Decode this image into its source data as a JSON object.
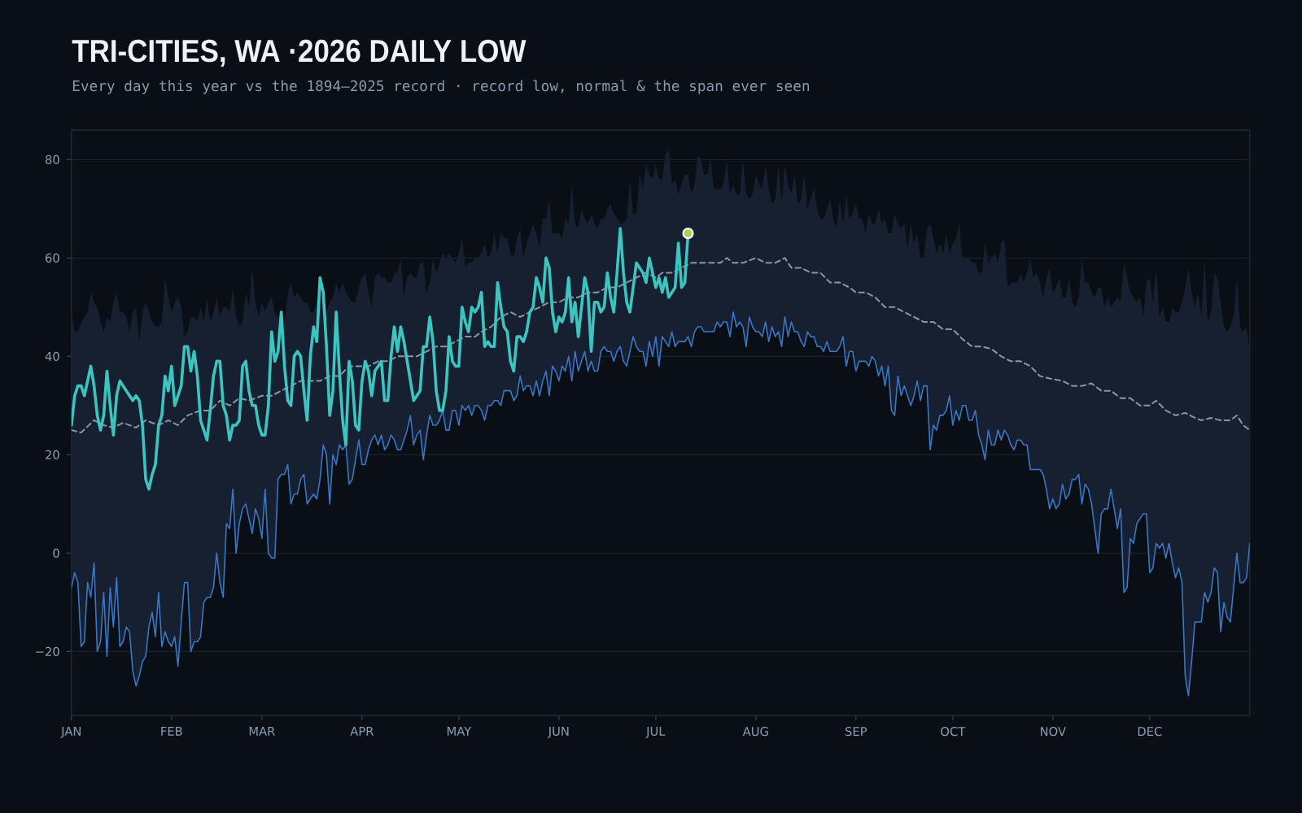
{
  "chart_data": {
    "type": "line",
    "title": "TRI-CITIES, WA ·2026 DAILY LOW",
    "subtitle": "Every day this year vs the 1894–2025 record · record low, normal & the span ever seen",
    "x": [
      "2026-01-01",
      "2026-01-02",
      "2026-01-03",
      "2026-01-04",
      "2026-01-05",
      "2026-01-06",
      "2026-01-07",
      "2026-01-08",
      "2026-01-09",
      "2026-01-10",
      "2026-01-11",
      "2026-01-12",
      "2026-01-13",
      "2026-01-14",
      "2026-01-15",
      "2026-01-16",
      "2026-01-17",
      "2026-01-18",
      "2026-01-19",
      "2026-01-20",
      "2026-01-21",
      "2026-01-22",
      "2026-01-23",
      "2026-01-24",
      "2026-01-25",
      "2026-01-26",
      "2026-01-27",
      "2026-01-28",
      "2026-01-29",
      "2026-01-30",
      "2026-01-31",
      "2026-02-01",
      "2026-02-02",
      "2026-02-03",
      "2026-02-04",
      "2026-02-05",
      "2026-02-06",
      "2026-02-07",
      "2026-02-08",
      "2026-02-09",
      "2026-02-10",
      "2026-02-11",
      "2026-02-12",
      "2026-02-13",
      "2026-02-14",
      "2026-02-15",
      "2026-02-16",
      "2026-02-17",
      "2026-02-18",
      "2026-02-19",
      "2026-02-20",
      "2026-02-21",
      "2026-02-22",
      "2026-02-23",
      "2026-02-24",
      "2026-02-25",
      "2026-02-26",
      "2026-02-27",
      "2026-02-28",
      "2026-03-01",
      "2026-03-02",
      "2026-03-03",
      "2026-03-04",
      "2026-03-05",
      "2026-03-06",
      "2026-03-07",
      "2026-03-08",
      "2026-03-09",
      "2026-03-10",
      "2026-03-11",
      "2026-03-12",
      "2026-03-13",
      "2026-03-14",
      "2026-03-15",
      "2026-03-16",
      "2026-03-17",
      "2026-03-18",
      "2026-03-19",
      "2026-03-20",
      "2026-03-21",
      "2026-03-22",
      "2026-03-23",
      "2026-03-24",
      "2026-03-25",
      "2026-03-26",
      "2026-03-27",
      "2026-03-28",
      "2026-03-29",
      "2026-03-30",
      "2026-03-31",
      "2026-04-01",
      "2026-04-02",
      "2026-04-03",
      "2026-04-04",
      "2026-04-05",
      "2026-04-06",
      "2026-04-07",
      "2026-04-08",
      "2026-04-09",
      "2026-04-10",
      "2026-04-11",
      "2026-04-12",
      "2026-04-13",
      "2026-04-14",
      "2026-04-15",
      "2026-04-16",
      "2026-04-17",
      "2026-04-18",
      "2026-04-19",
      "2026-04-20",
      "2026-04-21",
      "2026-04-22",
      "2026-04-23",
      "2026-04-24",
      "2026-04-25",
      "2026-04-26",
      "2026-04-27",
      "2026-04-28",
      "2026-04-29",
      "2026-04-30",
      "2026-05-01",
      "2026-05-02",
      "2026-05-03",
      "2026-05-04",
      "2026-05-05",
      "2026-05-06",
      "2026-05-07",
      "2026-05-08",
      "2026-05-09",
      "2026-05-10",
      "2026-05-11",
      "2026-05-12",
      "2026-05-13",
      "2026-05-14",
      "2026-05-15",
      "2026-05-16",
      "2026-05-17",
      "2026-05-18",
      "2026-05-19",
      "2026-05-20",
      "2026-05-21",
      "2026-05-22",
      "2026-05-23",
      "2026-05-24",
      "2026-05-25",
      "2026-05-26",
      "2026-05-27",
      "2026-05-28",
      "2026-05-29",
      "2026-05-30",
      "2026-05-31",
      "2026-06-01",
      "2026-06-02",
      "2026-06-03",
      "2026-06-04",
      "2026-06-05",
      "2026-06-06",
      "2026-06-07",
      "2026-06-08",
      "2026-06-09",
      "2026-06-10",
      "2026-06-11",
      "2026-06-12",
      "2026-06-13",
      "2026-06-14",
      "2026-06-15",
      "2026-06-16",
      "2026-06-17",
      "2026-06-18",
      "2026-06-19",
      "2026-06-20",
      "2026-06-21",
      "2026-06-22",
      "2026-06-23",
      "2026-06-24",
      "2026-06-25",
      "2026-06-26",
      "2026-06-27",
      "2026-06-28",
      "2026-06-29",
      "2026-06-30",
      "2026-07-01",
      "2026-07-02",
      "2026-07-03",
      "2026-07-04",
      "2026-07-05",
      "2026-07-06",
      "2026-07-07",
      "2026-07-08",
      "2026-07-09",
      "2026-07-10",
      "2026-07-11",
      "2026-07-12",
      "2026-07-13",
      "2026-07-14",
      "2026-07-15",
      "2026-07-16",
      "2026-07-17",
      "2026-07-18",
      "2026-07-19",
      "2026-07-20",
      "2026-07-21",
      "2026-07-22",
      "2026-07-23",
      "2026-07-24",
      "2026-07-25",
      "2026-07-26",
      "2026-07-27",
      "2026-07-28",
      "2026-07-29",
      "2026-07-30",
      "2026-07-31",
      "2026-08-01",
      "2026-08-02",
      "2026-08-03",
      "2026-08-04",
      "2026-08-05",
      "2026-08-06",
      "2026-08-07",
      "2026-08-08",
      "2026-08-09",
      "2026-08-10",
      "2026-08-11",
      "2026-08-12",
      "2026-08-13",
      "2026-08-14",
      "2026-08-15",
      "2026-08-16",
      "2026-08-17",
      "2026-08-18",
      "2026-08-19",
      "2026-08-20",
      "2026-08-21",
      "2026-08-22",
      "2026-08-23",
      "2026-08-24",
      "2026-08-25",
      "2026-08-26",
      "2026-08-27",
      "2026-08-28",
      "2026-08-29",
      "2026-08-30",
      "2026-08-31",
      "2026-09-01",
      "2026-09-02",
      "2026-09-03",
      "2026-09-04",
      "2026-09-05",
      "2026-09-06",
      "2026-09-07",
      "2026-09-08",
      "2026-09-09",
      "2026-09-10",
      "2026-09-11",
      "2026-09-12",
      "2026-09-13",
      "2026-09-14",
      "2026-09-15",
      "2026-09-16",
      "2026-09-17",
      "2026-09-18",
      "2026-09-19",
      "2026-09-20",
      "2026-09-21",
      "2026-09-22",
      "2026-09-23",
      "2026-09-24",
      "2026-09-25",
      "2026-09-26",
      "2026-09-27",
      "2026-09-28",
      "2026-09-29",
      "2026-09-30",
      "2026-10-01",
      "2026-10-02",
      "2026-10-03",
      "2026-10-04",
      "2026-10-05",
      "2026-10-06",
      "2026-10-07",
      "2026-10-08",
      "2026-10-09",
      "2026-10-10",
      "2026-10-11",
      "2026-10-12",
      "2026-10-13",
      "2026-10-14",
      "2026-10-15",
      "2026-10-16",
      "2026-10-17",
      "2026-10-18",
      "2026-10-19",
      "2026-10-20",
      "2026-10-21",
      "2026-10-22",
      "2026-10-23",
      "2026-10-24",
      "2026-10-25",
      "2026-10-26",
      "2026-10-27",
      "2026-10-28",
      "2026-10-29",
      "2026-10-30",
      "2026-10-31",
      "2026-11-01",
      "2026-11-02",
      "2026-11-03",
      "2026-11-04",
      "2026-11-05",
      "2026-11-06",
      "2026-11-07",
      "2026-11-08",
      "2026-11-09",
      "2026-11-10",
      "2026-11-11",
      "2026-11-12",
      "2026-11-13",
      "2026-11-14",
      "2026-11-15",
      "2026-11-16",
      "2026-11-17",
      "2026-11-18",
      "2026-11-19",
      "2026-11-20",
      "2026-11-21",
      "2026-11-22",
      "2026-11-23",
      "2026-11-24",
      "2026-11-25",
      "2026-11-26",
      "2026-11-27",
      "2026-11-28",
      "2026-11-29",
      "2026-11-30",
      "2026-12-01",
      "2026-12-02",
      "2026-12-03",
      "2026-12-04",
      "2026-12-05",
      "2026-12-06",
      "2026-12-07",
      "2026-12-08",
      "2026-12-09",
      "2026-12-10",
      "2026-12-11",
      "2026-12-12",
      "2026-12-13",
      "2026-12-14",
      "2026-12-15",
      "2026-12-16",
      "2026-12-17",
      "2026-12-18",
      "2026-12-19",
      "2026-12-20",
      "2026-12-21",
      "2026-12-22",
      "2026-12-23",
      "2026-12-24",
      "2026-12-25",
      "2026-12-26",
      "2026-12-27",
      "2026-12-28",
      "2026-12-29",
      "2026-12-30",
      "2026-12-31",
      "2027-01-01"
    ],
    "series": [
      {
        "color": "#3a76c4",
        "values": [
          -7,
          -4,
          -6,
          -19,
          -18,
          -6,
          -9,
          -2,
          -20,
          -18,
          -8,
          -21,
          -7,
          -15,
          -5,
          -19,
          -18,
          -15,
          -16,
          -24,
          -27,
          -25,
          -22,
          -21,
          -15,
          -12,
          -17,
          -8,
          -19,
          -16,
          -18,
          -19,
          -17,
          -23,
          -14,
          -6,
          -6,
          -20,
          -18,
          -18,
          -17,
          -10,
          -9,
          -9,
          -7,
          0,
          -6,
          -9,
          6,
          5,
          13,
          0,
          6,
          9,
          10,
          7,
          4,
          9,
          7,
          3,
          13,
          0,
          -1,
          -1,
          15,
          16,
          16,
          18,
          10,
          12,
          12,
          15,
          16,
          10,
          11,
          12,
          11,
          15,
          22,
          20,
          10,
          20,
          18,
          22,
          21,
          22,
          14,
          15,
          19,
          23,
          18,
          18,
          21,
          23,
          24,
          22,
          24,
          21,
          22,
          24,
          23,
          21,
          21,
          23,
          25,
          28,
          22,
          24,
          25,
          19,
          24,
          28,
          26,
          26,
          27,
          29,
          25,
          25,
          29,
          29,
          26,
          30,
          29,
          30,
          28,
          30,
          30,
          29,
          27,
          30,
          30,
          31,
          31,
          30,
          33,
          33,
          33,
          31,
          32,
          36,
          33,
          34,
          34,
          32,
          35,
          32,
          35,
          37,
          32,
          38,
          37,
          35,
          38,
          37,
          40,
          35,
          41,
          37,
          39,
          41,
          37,
          39,
          37,
          37,
          41,
          42,
          41,
          41,
          39,
          41,
          42,
          39,
          38,
          41,
          44,
          42,
          41,
          41,
          38,
          43,
          40,
          44,
          38,
          44,
          43,
          42,
          45,
          42,
          43,
          43,
          43,
          44,
          42,
          45,
          46,
          46,
          45,
          45,
          45,
          45,
          47,
          46,
          47,
          47,
          44,
          49,
          46,
          47,
          46,
          42,
          48,
          46,
          45,
          45,
          44,
          47,
          43,
          46,
          44,
          45,
          42,
          48,
          44,
          47,
          45,
          45,
          43,
          42,
          45,
          44,
          44,
          42,
          42,
          41,
          43,
          41,
          41,
          41,
          42,
          44,
          38,
          41,
          41,
          37,
          39,
          39,
          39,
          38,
          40,
          39,
          36,
          38,
          34,
          38,
          29,
          28,
          36,
          32,
          34,
          32,
          30,
          32,
          35,
          31,
          34,
          34,
          21,
          26,
          25,
          28,
          28,
          29,
          32,
          26,
          29,
          27,
          30,
          30,
          27,
          27,
          29,
          24,
          22,
          19,
          25,
          22,
          22,
          25,
          23,
          25,
          24,
          22,
          21,
          23,
          23,
          22,
          22,
          17,
          17,
          17,
          17,
          16,
          13,
          9,
          11,
          9,
          10,
          14,
          11,
          12,
          15,
          15,
          16,
          10,
          14,
          13,
          10,
          5,
          0,
          8,
          9,
          9,
          13,
          9,
          5,
          9,
          -8,
          -7,
          3,
          2,
          6,
          7,
          8,
          8,
          -4,
          -3,
          2,
          1,
          2,
          -1,
          2,
          -2,
          -5,
          -3,
          -6,
          -25,
          -29,
          -22,
          -14,
          -14,
          -14,
          -8,
          -10,
          -8,
          -3,
          -4,
          -16,
          -10,
          -13,
          -14,
          -7,
          0,
          -6,
          -6,
          -5,
          2
        ],
        "lower": [
          -7,
          -4,
          -6,
          -19,
          -18,
          -6,
          -9,
          -2,
          -20,
          -18,
          -8,
          -21,
          -7,
          -15,
          -5,
          -19,
          -18,
          -15,
          -16,
          -24,
          -27,
          -25,
          -22,
          -21,
          -15,
          -12,
          -17,
          -8,
          -19,
          -16,
          -18,
          -19,
          -17,
          -23,
          -14,
          -6,
          -6,
          -20,
          -18,
          -18,
          -17,
          -10,
          -9,
          -9,
          -7,
          0,
          -6,
          -9,
          6,
          5,
          13,
          0,
          6,
          9,
          10,
          7,
          4,
          9,
          7,
          3,
          13,
          0,
          -1,
          -1,
          15,
          16,
          16,
          18,
          10,
          12,
          12,
          15,
          16,
          10,
          11,
          12,
          11,
          15,
          22,
          20,
          10,
          20,
          18,
          22,
          21,
          22,
          14,
          15,
          19,
          23,
          18,
          18,
          21,
          23,
          24,
          22,
          24,
          21,
          22,
          24,
          23,
          21,
          21,
          23,
          25,
          28,
          22,
          24,
          25,
          19,
          24,
          28,
          26,
          26,
          27,
          29,
          25,
          25,
          29,
          29,
          26,
          30,
          29,
          30,
          28,
          30,
          30,
          29,
          27,
          30,
          30,
          31,
          31,
          30,
          33,
          33,
          33,
          31,
          32,
          36,
          33,
          34,
          34,
          32,
          35,
          32,
          35,
          37,
          32,
          38,
          37,
          35,
          38,
          37,
          40,
          35,
          41,
          37,
          39,
          41,
          37,
          39,
          37,
          37,
          41,
          42,
          41,
          41,
          39,
          41,
          42,
          39,
          38,
          41,
          44,
          42,
          41,
          41,
          38,
          43,
          40,
          44,
          38,
          44,
          43,
          42,
          45,
          42,
          43,
          43,
          43,
          44,
          42,
          45,
          46,
          46,
          45,
          45,
          45,
          45,
          47,
          46,
          47,
          47,
          44,
          49,
          46,
          47,
          46,
          42,
          48,
          46,
          45,
          45,
          44,
          47,
          43,
          46,
          44,
          45,
          42,
          48,
          44,
          47,
          45,
          45,
          43,
          42,
          45,
          44,
          44,
          42,
          42,
          41,
          43,
          41,
          41,
          41,
          42,
          44,
          38,
          41,
          41,
          37,
          39,
          39,
          39,
          38,
          40,
          39,
          36,
          38,
          34,
          38,
          29,
          28,
          36,
          32,
          34,
          32,
          30,
          32,
          35,
          31,
          34,
          34,
          21,
          26,
          25,
          28,
          28,
          29,
          32,
          26,
          29,
          27,
          30,
          30,
          27,
          27,
          29,
          24,
          22,
          19,
          25,
          22,
          22,
          25,
          23,
          25,
          24,
          22,
          21,
          23,
          23,
          22,
          22,
          17,
          17,
          17,
          17,
          16,
          13,
          9,
          11,
          9,
          10,
          14,
          11,
          12,
          15,
          15,
          16,
          10,
          14,
          13,
          10,
          5,
          0,
          8,
          9,
          9,
          13,
          9,
          5,
          9,
          -8,
          -7,
          3,
          2,
          6,
          7,
          8,
          8,
          -4,
          -3,
          2,
          1,
          2,
          -1,
          2,
          -2,
          -5,
          -3,
          -6,
          -25,
          -29,
          -22,
          -14,
          -14,
          -14,
          -8,
          -10,
          -8,
          -3,
          -4,
          -16,
          -10,
          -13,
          -14,
          -7,
          0,
          -6,
          -6,
          -5,
          2
        ],
        "upper": [
          49,
          45,
          45,
          47,
          48,
          49,
          53,
          51,
          50,
          47,
          45,
          48,
          47,
          51,
          53,
          49,
          49,
          48,
          45,
          49,
          50,
          43,
          49,
          51,
          49,
          47,
          46,
          46,
          47,
          56,
          52,
          49,
          51,
          52,
          50,
          44,
          45,
          48,
          48,
          47,
          50,
          47,
          52,
          47,
          49,
          52,
          48,
          50,
          50,
          49,
          54,
          48,
          46,
          47,
          53,
          50,
          58,
          51,
          48,
          51,
          49,
          51,
          52,
          49,
          48,
          49,
          47,
          53,
          55,
          52,
          53,
          52,
          51,
          51,
          49,
          49,
          51,
          54,
          53,
          49,
          51,
          52,
          55,
          53,
          55,
          53,
          52,
          51,
          51,
          54,
          56,
          57,
          53,
          50,
          56,
          57,
          56,
          56,
          55,
          55,
          57,
          57,
          60,
          52,
          56,
          57,
          56,
          56,
          59,
          59,
          53,
          55,
          60,
          57,
          59,
          61,
          60,
          61,
          60,
          59,
          61,
          64,
          58,
          59,
          59,
          60,
          60,
          61,
          63,
          60,
          61,
          65,
          61,
          65,
          64,
          64,
          61,
          60,
          64,
          66,
          60,
          63,
          65,
          67,
          65,
          62,
          68,
          68,
          72,
          65,
          65,
          65,
          64,
          68,
          67,
          75,
          67,
          66,
          70,
          68,
          67,
          69,
          67,
          66,
          68,
          68,
          70,
          71,
          69,
          68,
          67,
          67,
          68,
          76,
          69,
          69,
          77,
          74,
          79,
          77,
          76,
          79,
          76,
          76,
          81,
          82,
          75,
          76,
          73,
          75,
          77,
          77,
          73,
          75,
          81,
          80,
          77,
          77,
          80,
          74,
          74,
          74,
          75,
          80,
          73,
          75,
          73,
          73,
          80,
          73,
          72,
          73,
          77,
          75,
          74,
          79,
          74,
          71,
          72,
          79,
          71,
          79,
          75,
          73,
          77,
          71,
          72,
          77,
          70,
          72,
          74,
          70,
          68,
          68,
          70,
          72,
          68,
          66,
          72,
          67,
          73,
          68,
          69,
          71,
          68,
          68,
          65,
          69,
          67,
          67,
          70,
          67,
          68,
          65,
          65,
          69,
          67,
          66,
          67,
          62,
          67,
          63,
          65,
          60,
          60,
          66,
          67,
          64,
          61,
          63,
          61,
          65,
          61,
          63,
          64,
          67,
          60,
          60,
          60,
          59,
          59,
          57,
          57,
          63,
          59,
          60,
          61,
          59,
          63,
          64,
          54,
          55,
          55,
          55,
          57,
          55,
          57,
          60,
          56,
          57,
          55,
          52,
          56,
          58,
          53,
          54,
          56,
          52,
          52,
          56,
          51,
          50,
          52,
          60,
          55,
          55,
          53,
          52,
          54,
          54,
          50,
          52,
          50,
          51,
          52,
          51,
          59,
          56,
          53,
          52,
          51,
          52,
          48,
          55,
          56,
          51,
          58,
          48,
          50,
          47,
          47,
          50,
          49,
          49,
          51,
          54,
          58,
          53,
          50,
          53,
          48,
          60,
          47,
          49,
          57,
          56,
          51,
          46,
          45,
          46,
          48,
          56,
          46,
          45,
          46,
          41
        ]
      },
      {
        "color": "#8796ab",
        "line_style": "dashed",
        "x": [
          "2026-01-01",
          "2026-01-04",
          "2026-01-08",
          "2026-01-11",
          "2026-01-14",
          "2026-01-17",
          "2026-01-21",
          "2026-01-24",
          "2026-01-28",
          "2026-01-31",
          "2026-02-03",
          "2026-02-06",
          "2026-02-10",
          "2026-02-13",
          "2026-02-16",
          "2026-02-19",
          "2026-02-22",
          "2026-02-25",
          "2026-03-01",
          "2026-03-04",
          "2026-03-07",
          "2026-03-10",
          "2026-03-13",
          "2026-03-16",
          "2026-03-19",
          "2026-03-22",
          "2026-03-25",
          "2026-03-28",
          "2026-03-31",
          "2026-04-03",
          "2026-04-06",
          "2026-04-09",
          "2026-04-12",
          "2026-04-15",
          "2026-04-18",
          "2026-04-21",
          "2026-04-24",
          "2026-04-27",
          "2026-04-30",
          "2026-05-03",
          "2026-05-06",
          "2026-05-08",
          "2026-05-11",
          "2026-05-14",
          "2026-05-17",
          "2026-05-20",
          "2026-05-23",
          "2026-05-26",
          "2026-05-29",
          "2026-06-01",
          "2026-06-04",
          "2026-06-07",
          "2026-06-10",
          "2026-06-13",
          "2026-06-16",
          "2026-06-19",
          "2026-06-22",
          "2026-06-25",
          "2026-06-28",
          "2026-07-01",
          "2026-07-03",
          "2026-07-06",
          "2026-07-09",
          "2026-07-12",
          "2026-07-15",
          "2026-07-18",
          "2026-07-21",
          "2026-07-23",
          "2026-07-25",
          "2026-07-28",
          "2026-07-30",
          "2026-08-01",
          "2026-08-04",
          "2026-08-07",
          "2026-08-10",
          "2026-08-12",
          "2026-08-15",
          "2026-08-18",
          "2026-08-21",
          "2026-08-24",
          "2026-08-27",
          "2026-08-30",
          "2026-09-01",
          "2026-09-04",
          "2026-09-07",
          "2026-09-10",
          "2026-09-13",
          "2026-09-16",
          "2026-09-19",
          "2026-09-22",
          "2026-09-25",
          "2026-09-28",
          "2026-10-01",
          "2026-10-04",
          "2026-10-07",
          "2026-10-10",
          "2026-10-13",
          "2026-10-16",
          "2026-10-19",
          "2026-10-22",
          "2026-10-25",
          "2026-10-28",
          "2026-10-31",
          "2026-11-04",
          "2026-11-07",
          "2026-11-10",
          "2026-11-13",
          "2026-11-16",
          "2026-11-19",
          "2026-11-22",
          "2026-11-25",
          "2026-11-28",
          "2026-12-01",
          "2026-12-03",
          "2026-12-06",
          "2026-12-09",
          "2026-12-12",
          "2026-12-15",
          "2026-12-17",
          "2026-12-20",
          "2026-12-23",
          "2026-12-26",
          "2026-12-28",
          "2026-12-30",
          "2027-01-01"
        ],
        "values": [
          25,
          24.5,
          27,
          26,
          25.5,
          26.5,
          25.5,
          27,
          26,
          27,
          26,
          28,
          29,
          29,
          31,
          30,
          31.5,
          31,
          32,
          32,
          33,
          34,
          35,
          35,
          35,
          36,
          36,
          38,
          38,
          38,
          39,
          39,
          40,
          40,
          40,
          41,
          42,
          42,
          43,
          44,
          44,
          45,
          46,
          48,
          49,
          48,
          49,
          50,
          51,
          51,
          52,
          52,
          53,
          53,
          54,
          54,
          55,
          56,
          57,
          56,
          57,
          57,
          58,
          59,
          59,
          59,
          59,
          60,
          59,
          59,
          59.5,
          60,
          59,
          59,
          60,
          58,
          58,
          57,
          57,
          55,
          55,
          54,
          53,
          53,
          52,
          50,
          50,
          49,
          48,
          47,
          47,
          45.5,
          45.5,
          43.5,
          42,
          42,
          41.5,
          40,
          39,
          39,
          38,
          36,
          35.5,
          35,
          34,
          34,
          34.5,
          33,
          33,
          31.5,
          31.5,
          30,
          30,
          31,
          29,
          28,
          28.5,
          27.5,
          27,
          27.5,
          27,
          27,
          28,
          26,
          25
        ]
      },
      {
        "color": "#3cc4c0",
        "values": [
          26,
          32,
          34,
          34,
          32,
          35,
          38,
          34,
          28,
          25,
          28,
          37,
          30,
          24,
          32,
          35,
          34,
          33,
          32,
          31,
          32,
          31,
          26,
          15,
          13,
          16,
          18,
          26,
          28,
          36,
          33,
          38,
          30,
          32,
          34,
          42,
          42,
          37,
          41,
          36,
          27,
          25,
          23,
          29,
          36,
          39,
          39,
          30,
          28,
          23,
          26,
          26,
          27,
          38,
          39,
          33,
          30,
          30,
          26,
          24,
          24,
          30,
          45,
          39,
          41,
          49,
          38,
          31,
          30,
          40,
          41,
          40,
          33,
          27,
          40,
          46,
          43,
          56,
          53,
          42,
          28,
          33,
          49,
          37,
          27,
          22,
          39,
          35,
          26,
          25,
          35,
          39,
          37,
          32,
          37,
          38,
          39,
          31,
          31,
          40,
          46,
          41,
          46,
          43,
          39,
          35,
          31,
          32,
          33,
          42,
          42,
          48,
          43,
          33,
          29,
          29,
          33,
          44,
          39,
          38,
          38,
          50,
          47,
          45,
          50,
          49,
          50,
          53,
          42,
          43,
          42,
          42,
          55,
          50,
          46,
          45,
          39,
          37,
          44,
          44,
          43,
          45,
          49,
          50,
          56,
          54,
          51,
          60,
          58,
          49,
          45,
          48,
          47,
          49,
          56,
          47,
          51,
          44,
          50,
          56,
          53,
          41,
          51,
          51,
          49,
          50,
          57,
          52,
          49,
          57,
          66,
          57,
          51,
          49,
          54,
          59,
          58,
          57,
          55,
          60,
          57,
          54,
          56,
          53,
          56,
          52,
          53,
          54,
          63,
          54,
          55,
          65,
          null,
          null,
          null,
          null,
          null,
          null,
          null,
          null,
          null,
          null,
          null,
          null,
          null,
          null,
          null,
          null,
          null,
          null,
          null,
          null,
          null,
          null,
          null,
          null,
          null,
          null,
          null,
          null,
          null,
          null,
          null,
          null,
          null,
          null,
          null,
          null,
          null,
          null,
          null,
          null,
          null,
          null,
          null,
          null,
          null,
          null,
          null,
          null,
          null,
          null,
          null,
          null,
          null,
          null,
          null,
          null,
          null,
          null,
          null,
          null,
          null,
          null,
          null,
          null,
          null,
          null,
          null,
          null,
          null,
          null,
          null,
          null,
          null,
          null,
          null,
          null,
          null,
          null,
          null,
          null,
          null,
          null,
          null,
          null,
          null,
          null,
          null,
          null,
          null,
          null,
          null,
          null,
          null,
          null,
          null,
          null,
          null,
          null,
          null,
          null,
          null,
          null,
          null,
          null,
          null,
          null,
          null,
          null,
          null,
          null,
          null,
          null,
          null,
          null,
          null,
          null,
          null,
          null,
          null,
          null,
          null,
          null,
          null,
          null,
          null,
          null,
          null,
          null,
          null,
          null,
          null,
          null,
          null,
          null,
          null,
          null,
          null,
          null,
          null,
          null,
          null,
          null,
          null,
          null,
          null,
          null,
          null,
          null,
          null,
          null,
          null,
          null,
          null,
          null,
          null,
          null,
          null,
          null,
          null,
          null,
          null,
          null,
          null,
          null,
          null,
          null,
          null,
          null,
          null,
          null,
          null,
          null,
          null,
          null
        ]
      },
      {
        "type": "scatter",
        "marker": "circle",
        "color": "#a9d64a",
        "x": [
          "2026-07-11"
        ],
        "values": [
          65
        ]
      }
    ],
    "xlim": [
      "2026-01-01",
      "2027-01-01"
    ],
    "xticks": [
      {
        "value": "2026-01-01",
        "label": "JAN"
      },
      {
        "value": "2026-02-01",
        "label": "FEB"
      },
      {
        "value": "2026-03-01",
        "label": "MAR"
      },
      {
        "value": "2026-04-01",
        "label": "APR"
      },
      {
        "value": "2026-05-01",
        "label": "MAY"
      },
      {
        "value": "2026-06-01",
        "label": "JUN"
      },
      {
        "value": "2026-07-01",
        "label": "JUL"
      },
      {
        "value": "2026-08-01",
        "label": "AUG"
      },
      {
        "value": "2026-09-01",
        "label": "SEP"
      },
      {
        "value": "2026-10-01",
        "label": "OCT"
      },
      {
        "value": "2026-11-01",
        "label": "NOV"
      },
      {
        "value": "2026-12-01",
        "label": "DEC"
      }
    ],
    "ylim": [
      -33,
      86
    ],
    "yticks": [
      {
        "value": -20,
        "label": "−20"
      },
      0,
      20,
      40,
      60,
      80
    ],
    "grid": "y"
  }
}
